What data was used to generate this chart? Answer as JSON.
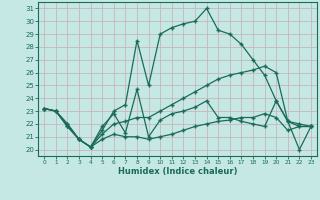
{
  "xlabel": "Humidex (Indice chaleur)",
  "background_color": "#c5e8e5",
  "grid_color": "#c8b8b8",
  "line_color": "#1a6b5a",
  "xlim": [
    -0.5,
    23.5
  ],
  "ylim": [
    19.5,
    31.5
  ],
  "yticks": [
    20,
    21,
    22,
    23,
    24,
    25,
    26,
    27,
    28,
    29,
    30,
    31
  ],
  "xticks": [
    0,
    1,
    2,
    3,
    4,
    5,
    6,
    7,
    8,
    9,
    10,
    11,
    12,
    13,
    14,
    15,
    16,
    17,
    18,
    19,
    20,
    21,
    22,
    23
  ],
  "series": [
    {
      "y": [
        23.2,
        23.0,
        22.0,
        20.8,
        20.2,
        21.5,
        23.0,
        23.5,
        28.5,
        25.0,
        29.0,
        29.5,
        29.8,
        30.0,
        31.0,
        29.3,
        29.0,
        28.2,
        27.0,
        25.8,
        23.8,
        22.2,
        20.0,
        21.8
      ]
    },
    {
      "y": [
        23.2,
        23.0,
        22.0,
        20.8,
        20.2,
        21.2,
        22.0,
        22.2,
        22.5,
        22.5,
        23.0,
        23.5,
        24.0,
        24.5,
        25.0,
        25.5,
        25.8,
        26.0,
        26.2,
        26.5,
        26.0,
        22.2,
        22.0,
        21.8
      ]
    },
    {
      "y": [
        23.2,
        23.0,
        21.8,
        20.8,
        20.2,
        21.8,
        22.8,
        21.3,
        24.7,
        21.0,
        22.3,
        22.8,
        23.0,
        23.3,
        23.8,
        22.5,
        22.5,
        22.2,
        22.0,
        21.8,
        23.8,
        22.2,
        21.8,
        21.8
      ]
    },
    {
      "y": [
        23.2,
        23.0,
        21.8,
        20.8,
        20.2,
        20.8,
        21.2,
        21.0,
        21.0,
        20.8,
        21.0,
        21.2,
        21.5,
        21.8,
        22.0,
        22.2,
        22.3,
        22.5,
        22.5,
        22.8,
        22.5,
        21.5,
        21.8,
        21.8
      ]
    }
  ]
}
